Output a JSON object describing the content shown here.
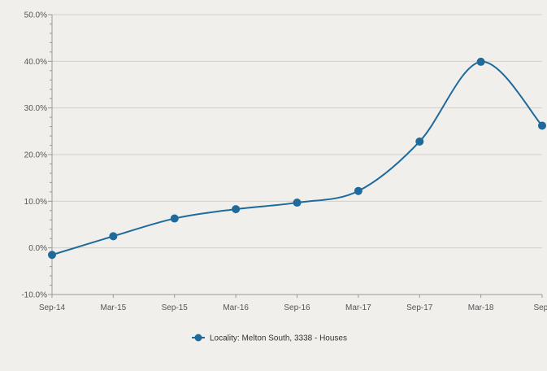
{
  "chart_data": {
    "type": "line",
    "title": "",
    "xlabel": "",
    "ylabel": "",
    "categories": [
      "Sep-14",
      "Mar-15",
      "Sep-15",
      "Mar-16",
      "Sep-16",
      "Mar-17",
      "Sep-17",
      "Mar-18",
      "Sep-"
    ],
    "ylim": [
      -10,
      50
    ],
    "y_ticks": [
      "-10.0%",
      "0.0%",
      "10.0%",
      "20.0%",
      "30.0%",
      "40.0%",
      "50.0%"
    ],
    "grid": true,
    "legend_position": "bottom-center",
    "series": [
      {
        "name": "Locality: Melton South, 3338 - Houses",
        "color": "#1f6a9b",
        "values": [
          -1.5,
          2.5,
          6.3,
          8.3,
          9.7,
          12.2,
          22.8,
          39.9,
          26.2
        ]
      }
    ]
  }
}
